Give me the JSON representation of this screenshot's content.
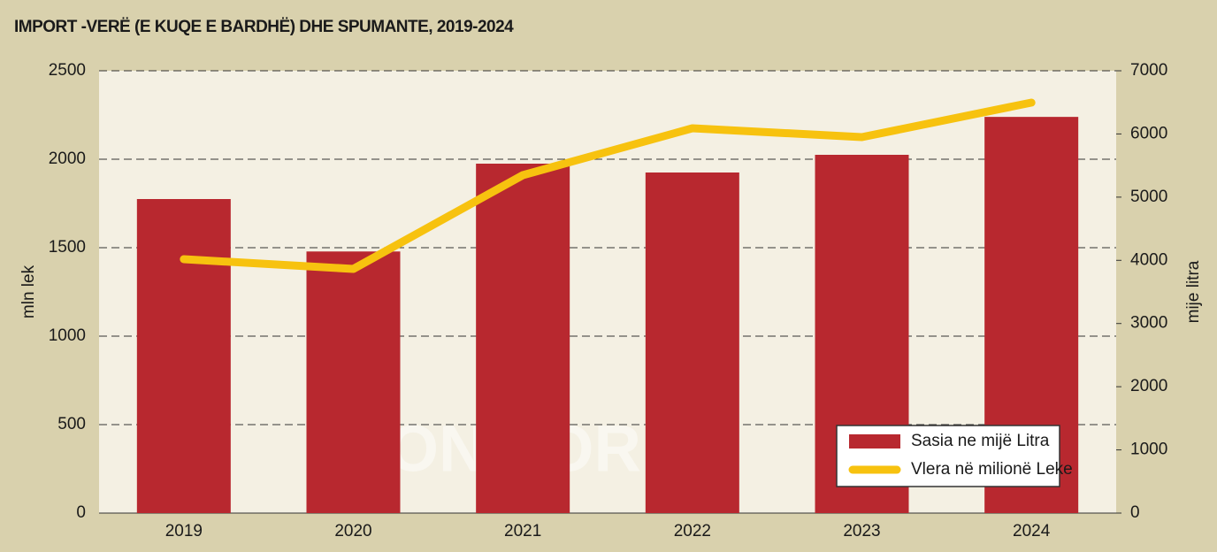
{
  "chart_data": {
    "type": "bar",
    "title": "IMPORT -VERË (E KUQE E BARDHË) DHE SPUMANTE, 2019-2024",
    "y_label": "mln lek",
    "y2_label": "mije litra",
    "watermark": "MONITOR.al",
    "categories": [
      "2019",
      "2020",
      "2021",
      "2022",
      "2023",
      "2024"
    ],
    "series": [
      {
        "name": "Sasia ne mijë Litra",
        "color": "#b8282f",
        "type": "bar",
        "axis": "y2",
        "values": [
          4970,
          4140,
          5530,
          5390,
          5670,
          6270
        ]
      },
      {
        "name": "Vlera në milionë Leke",
        "color": "#f7c20f",
        "type": "line",
        "values": [
          1435,
          1380,
          1910,
          2175,
          2125,
          2320
        ]
      }
    ],
    "ylim": [
      0,
      2500
    ],
    "yticks": [
      0,
      500,
      1000,
      1500,
      2000,
      2500
    ],
    "y2lim": [
      0,
      7000
    ],
    "y2ticks": [
      0,
      1000,
      2000,
      3000,
      4000,
      5000,
      6000,
      7000
    ],
    "grid": true,
    "legend": "lower right"
  }
}
